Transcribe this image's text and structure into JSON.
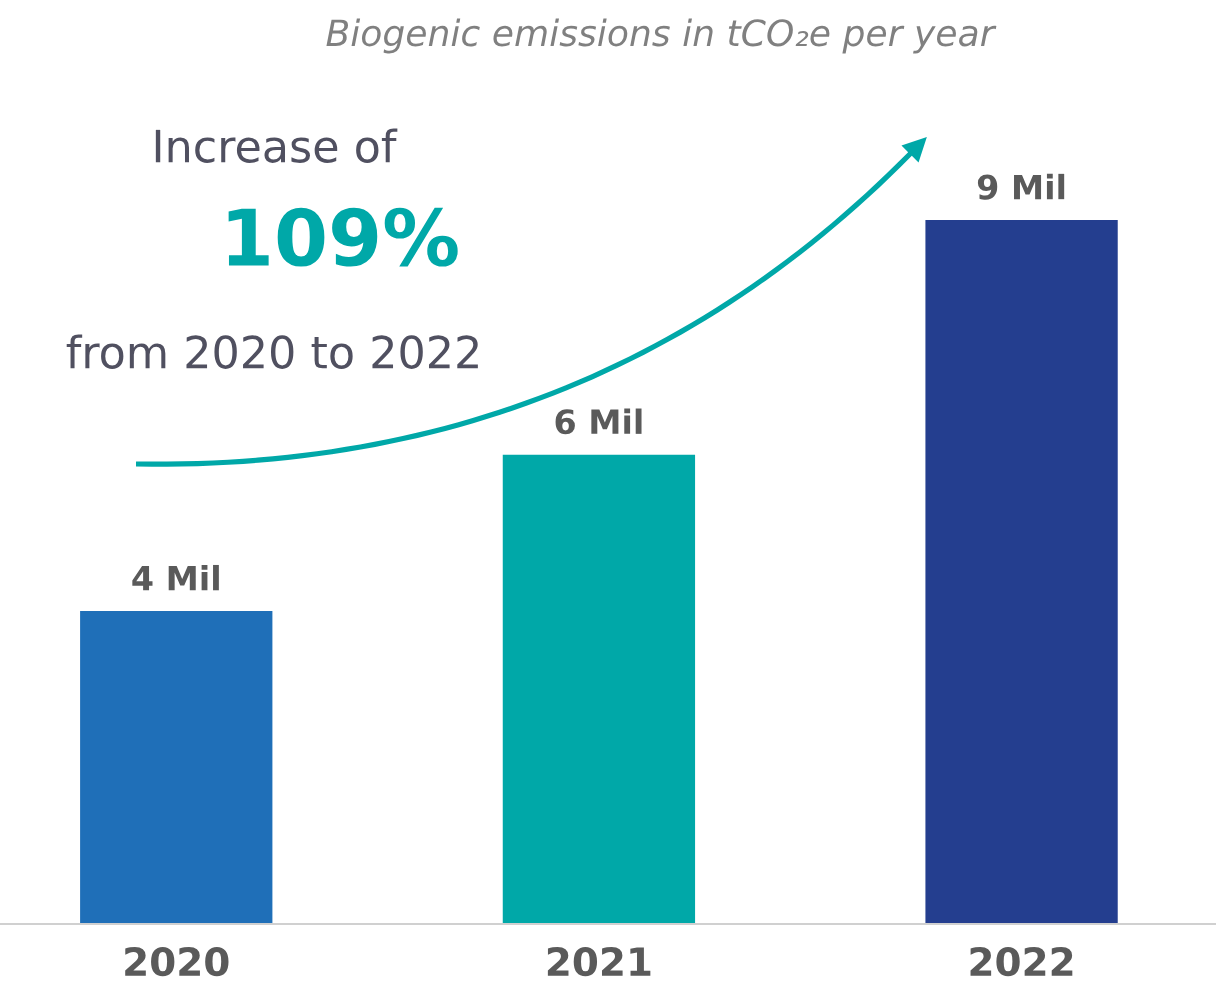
{
  "chart_data": {
    "type": "bar",
    "title": "Biogenic emissions in tCO₂e per year",
    "categories": [
      "2020",
      "2021",
      "2022"
    ],
    "values": [
      4,
      6,
      9
    ],
    "colors": [
      "#1f6fb8",
      "#00a8a8",
      "#243e8f"
    ],
    "value_labels": [
      "4 Mil",
      "6 Mil",
      "9 Mil"
    ],
    "annotations": [
      "Increase of",
      "109%",
      "from 2020 to 2022"
    ],
    "grid": false,
    "legend": false
  }
}
